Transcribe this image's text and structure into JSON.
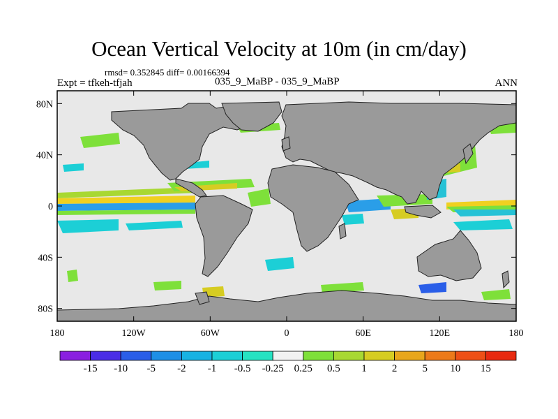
{
  "title": "Ocean Vertical Velocity at 10m (in cm/day)",
  "stats": "rmsd= 0.352845 diff= 0.00166394",
  "expt": "Expt = tfkeh-tfjah",
  "case_label": "035_9_MaBP - 035_9_MaBP",
  "season": "ANN",
  "colors": {
    "land": "#9a9a9a",
    "ocean": "#e8e8e8",
    "frame": "#000000"
  },
  "chart_data": {
    "type": "heatmap",
    "x_ticks": [
      "180",
      "120W",
      "60W",
      "0",
      "60E",
      "120E",
      "180"
    ],
    "y_ticks": [
      "80N",
      "40N",
      "0",
      "40S",
      "80S"
    ],
    "colorbar": {
      "labels": [
        "-15",
        "-10",
        "-5",
        "-2",
        "-1",
        "-0.5",
        "-0.25",
        "0.25",
        "0.5",
        "1",
        "2",
        "5",
        "10",
        "15"
      ],
      "colors": [
        "#8a1fe0",
        "#4a2de6",
        "#2a5ee8",
        "#1e8fe6",
        "#18b2e2",
        "#1ccfd6",
        "#26e2c2",
        "#f2f2f2",
        "#7ee03a",
        "#a8d832",
        "#d6cc22",
        "#e8a61c",
        "#ec7a1a",
        "#ee5016",
        "#e82a10"
      ]
    }
  }
}
